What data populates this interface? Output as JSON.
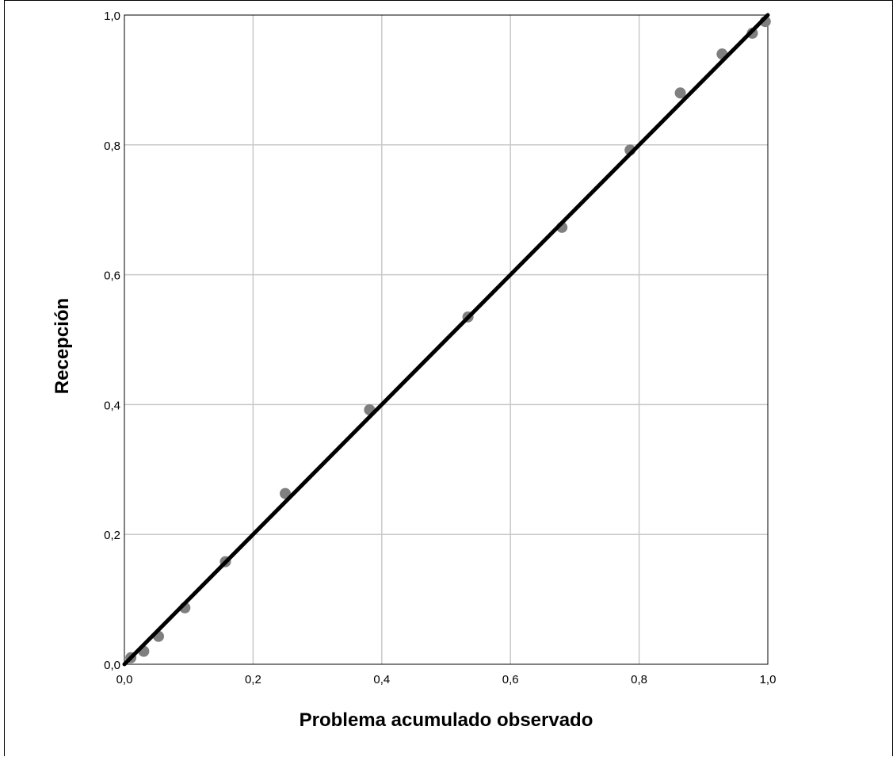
{
  "chart_data": {
    "type": "scatter",
    "xlabel": "Problema acumulado observado",
    "ylabel": "Recepción",
    "xlim": [
      0,
      1
    ],
    "ylim": [
      0,
      1
    ],
    "x_ticks": [
      "0,0",
      "0,2",
      "0,4",
      "0,6",
      "0,8",
      "1,0"
    ],
    "y_ticks": [
      "0,0",
      "0,2",
      "0,4",
      "0,6",
      "0,8",
      "1,0"
    ],
    "grid": true,
    "reference_line": {
      "from": [
        0,
        0
      ],
      "to": [
        1,
        1
      ],
      "color": "#000000"
    },
    "points": [
      {
        "x": 0.01,
        "y": 0.01
      },
      {
        "x": 0.03,
        "y": 0.02
      },
      {
        "x": 0.053,
        "y": 0.043
      },
      {
        "x": 0.094,
        "y": 0.087
      },
      {
        "x": 0.157,
        "y": 0.158
      },
      {
        "x": 0.25,
        "y": 0.263
      },
      {
        "x": 0.381,
        "y": 0.392
      },
      {
        "x": 0.534,
        "y": 0.535
      },
      {
        "x": 0.68,
        "y": 0.673
      },
      {
        "x": 0.786,
        "y": 0.792
      },
      {
        "x": 0.864,
        "y": 0.88
      },
      {
        "x": 0.929,
        "y": 0.94
      },
      {
        "x": 0.976,
        "y": 0.972
      },
      {
        "x": 0.996,
        "y": 0.99
      }
    ],
    "point_color": "#7f7f7f",
    "grid_color": "#c8c8c8"
  }
}
